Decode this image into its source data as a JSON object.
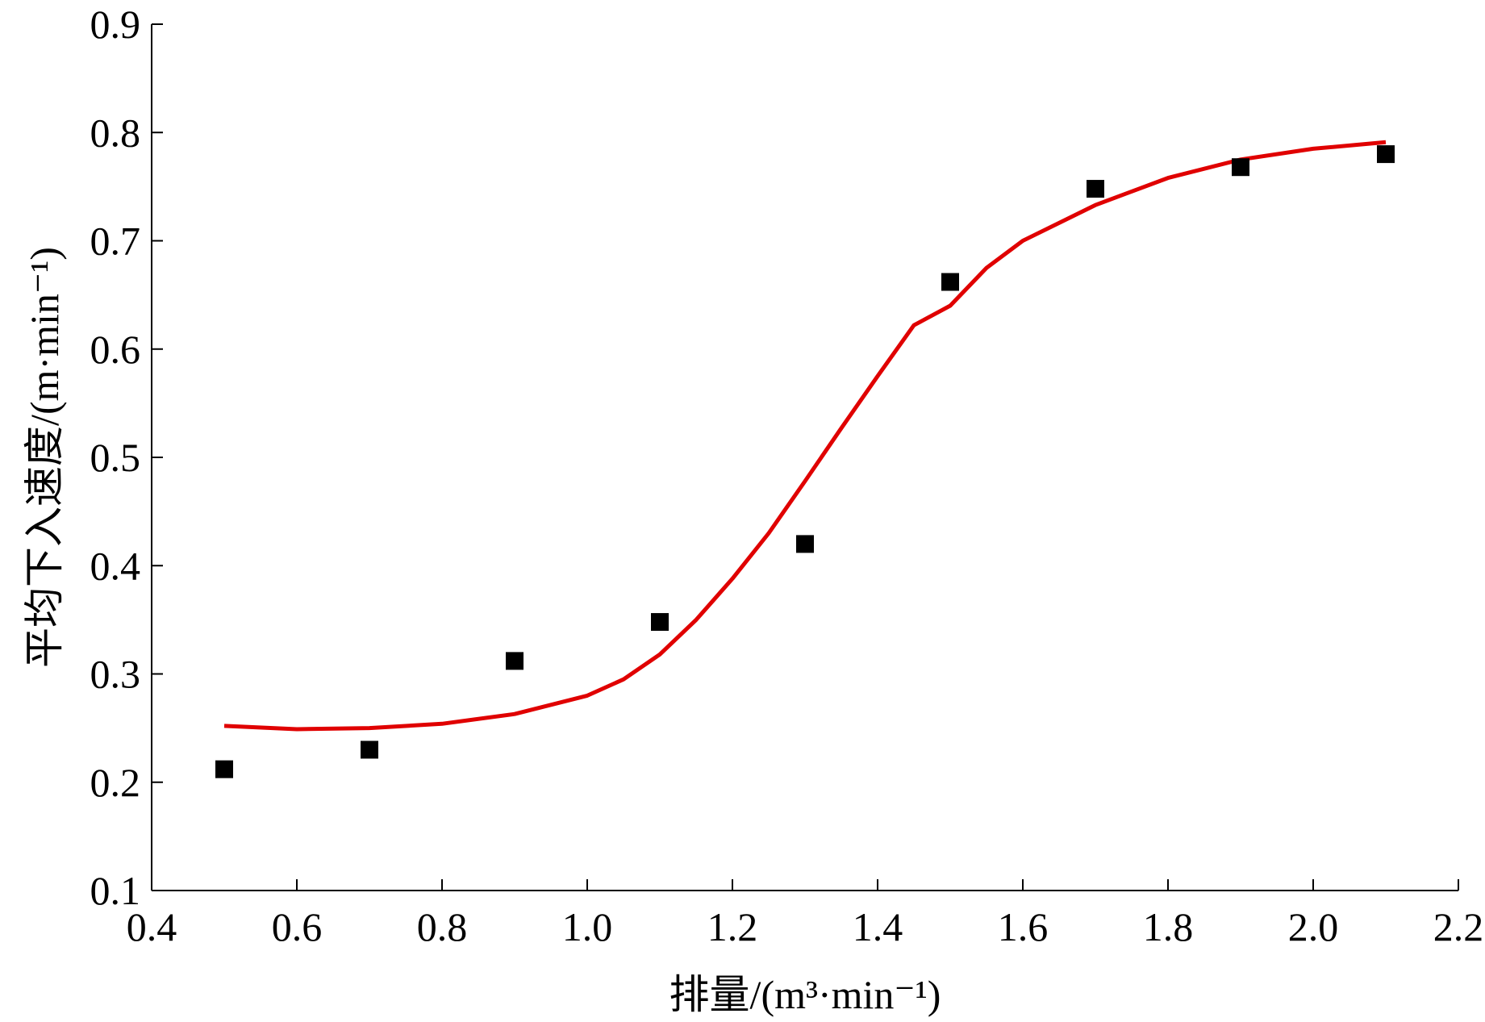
{
  "chart_data": {
    "type": "scatter",
    "xlabel": "排量/(m³·min⁻¹)",
    "ylabel": "平均下入速度/(m·min⁻¹)",
    "xlim": [
      0.4,
      2.2
    ],
    "ylim": [
      0.1,
      0.9
    ],
    "x_ticks": [
      "0.4",
      "0.6",
      "0.8",
      "1.0",
      "1.2",
      "1.4",
      "1.6",
      "1.8",
      "2.0",
      "2.2"
    ],
    "y_ticks": [
      "0.1",
      "0.2",
      "0.3",
      "0.4",
      "0.5",
      "0.6",
      "0.7",
      "0.8",
      "0.9"
    ],
    "grid": false,
    "legend": "none",
    "series": [
      {
        "kind": "scatter",
        "marker": "square",
        "color": "#000000",
        "x": [
          0.5,
          0.7,
          0.9,
          1.1,
          1.3,
          1.5,
          1.7,
          1.9,
          2.1
        ],
        "y": [
          0.212,
          0.23,
          0.312,
          0.348,
          0.42,
          0.662,
          0.748,
          0.768,
          0.78
        ]
      },
      {
        "kind": "line",
        "color": "#e00000",
        "x": [
          0.5,
          0.6,
          0.7,
          0.8,
          0.9,
          1.0,
          1.05,
          1.1,
          1.15,
          1.2,
          1.25,
          1.3,
          1.35,
          1.4,
          1.45,
          1.5,
          1.55,
          1.6,
          1.7,
          1.8,
          1.9,
          2.0,
          2.1
        ],
        "y": [
          0.252,
          0.249,
          0.25,
          0.254,
          0.263,
          0.28,
          0.295,
          0.318,
          0.35,
          0.388,
          0.43,
          0.478,
          0.527,
          0.575,
          0.622,
          0.64,
          0.675,
          0.7,
          0.733,
          0.758,
          0.775,
          0.785,
          0.791
        ]
      }
    ]
  }
}
